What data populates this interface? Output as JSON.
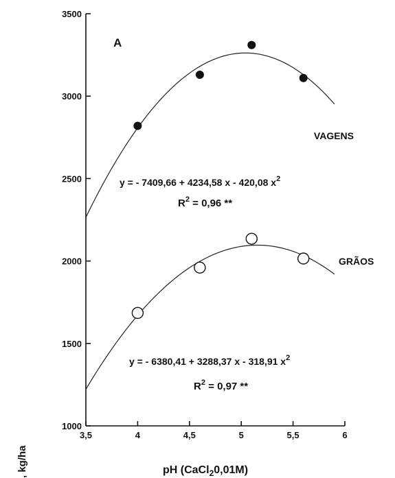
{
  "chart_data": {
    "type": "scatter",
    "panel_label": "A",
    "xlabel": "pH (CaCl",
    "xlabel_sub": "2",
    "xlabel_rest": "0,01M)",
    "ylabel_fragment": ", kg/ha",
    "xlim": [
      3.5,
      6
    ],
    "ylim": [
      1000,
      3500
    ],
    "x_ticks": [
      3.5,
      4,
      4.5,
      5,
      5.5,
      6
    ],
    "x_tick_labels": [
      "3,5",
      "4",
      "4,5",
      "5",
      "5,5",
      "6"
    ],
    "y_ticks": [
      1000,
      1500,
      2000,
      2500,
      3000,
      3500
    ],
    "y_tick_labels": [
      "1000",
      "1500",
      "2000",
      "2500",
      "3000",
      "3500"
    ],
    "series": [
      {
        "name": "VAGENS",
        "marker": "filled-circle",
        "x": [
          4.0,
          4.6,
          5.1,
          5.6
        ],
        "y": [
          2820,
          3130,
          3310,
          3110
        ],
        "fit": {
          "a": -7409.66,
          "b": 4234.58,
          "c": -420.08,
          "x_range": [
            3.5,
            5.9
          ]
        },
        "equation": "y = - 7409,66 + 4234,58 x - 420,08 x",
        "equation_exp": "2",
        "r2_label": "R",
        "r2_exp": "2",
        "r2_value": " = 0,96 **"
      },
      {
        "name": "GRÃOS",
        "marker": "open-circle",
        "x": [
          4.0,
          4.6,
          5.1,
          5.6
        ],
        "y": [
          1685,
          1960,
          2135,
          2015
        ],
        "fit": {
          "a": -6380.41,
          "b": 3288.37,
          "c": -318.91,
          "x_range": [
            3.5,
            5.9
          ]
        },
        "equation": "y = - 6380,41 + 3288,37 x - 318,91 x",
        "equation_exp": "2",
        "r2_label": "R",
        "r2_exp": "2",
        "r2_value": " = 0,97 **"
      }
    ]
  }
}
